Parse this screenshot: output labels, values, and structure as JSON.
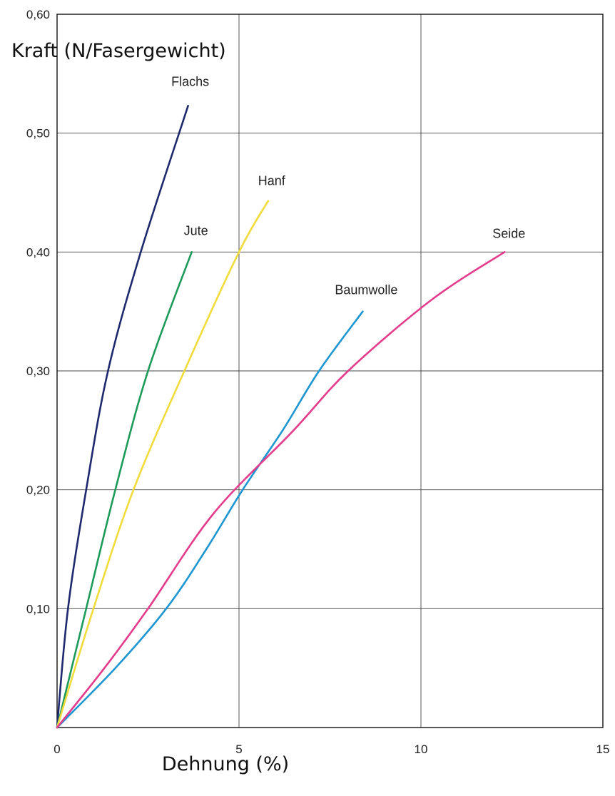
{
  "chart_data": {
    "type": "line",
    "title": "",
    "ylabel": "Kraft (N/Fasergewicht)",
    "xlabel": "Dehnung (%)",
    "xlim": [
      0,
      15
    ],
    "ylim": [
      0,
      0.6
    ],
    "x_ticks": [
      {
        "value": 0,
        "label": "0"
      },
      {
        "value": 5,
        "label": "5"
      },
      {
        "value": 10,
        "label": "10"
      },
      {
        "value": 15,
        "label": "15"
      }
    ],
    "y_ticks": [
      {
        "value": 0.1,
        "label": "0,10"
      },
      {
        "value": 0.2,
        "label": "0,20"
      },
      {
        "value": 0.3,
        "label": "0,30"
      },
      {
        "value": 0.4,
        "label": "0,40"
      },
      {
        "value": 0.5,
        "label": "0,50"
      },
      {
        "value": 0.6,
        "label": "0,60"
      }
    ],
    "grid": true,
    "series": [
      {
        "name": "Flachs",
        "color": "#1f2a6e",
        "points": [
          [
            0,
            0
          ],
          [
            0.3,
            0.1
          ],
          [
            0.8,
            0.2
          ],
          [
            1.4,
            0.3
          ],
          [
            2.3,
            0.4
          ],
          [
            3.6,
            0.523
          ]
        ]
      },
      {
        "name": "Jute",
        "color": "#1e9a5a",
        "points": [
          [
            0,
            0
          ],
          [
            0.8,
            0.1
          ],
          [
            1.6,
            0.2
          ],
          [
            2.5,
            0.3
          ],
          [
            3.7,
            0.4
          ]
        ]
      },
      {
        "name": "Hanf",
        "color": "#f0dc3c",
        "points": [
          [
            0,
            0
          ],
          [
            1.0,
            0.1
          ],
          [
            2.1,
            0.2
          ],
          [
            3.5,
            0.3
          ],
          [
            5.0,
            0.4
          ],
          [
            5.8,
            0.443
          ]
        ]
      },
      {
        "name": "Baumwolle",
        "color": "#1e96d2",
        "points": [
          [
            0,
            0
          ],
          [
            1.6,
            0.05
          ],
          [
            3.0,
            0.1
          ],
          [
            4.1,
            0.15
          ],
          [
            5.1,
            0.2
          ],
          [
            6.2,
            0.25
          ],
          [
            7.2,
            0.3
          ],
          [
            8.4,
            0.35
          ]
        ]
      },
      {
        "name": "Seide",
        "color": "#e43c8c",
        "points": [
          [
            0,
            0
          ],
          [
            1.3,
            0.05
          ],
          [
            2.5,
            0.1
          ],
          [
            4.3,
            0.18
          ],
          [
            6.5,
            0.25
          ],
          [
            8.0,
            0.3
          ],
          [
            10.3,
            0.36
          ],
          [
            12.3,
            0.4
          ]
        ]
      }
    ]
  }
}
